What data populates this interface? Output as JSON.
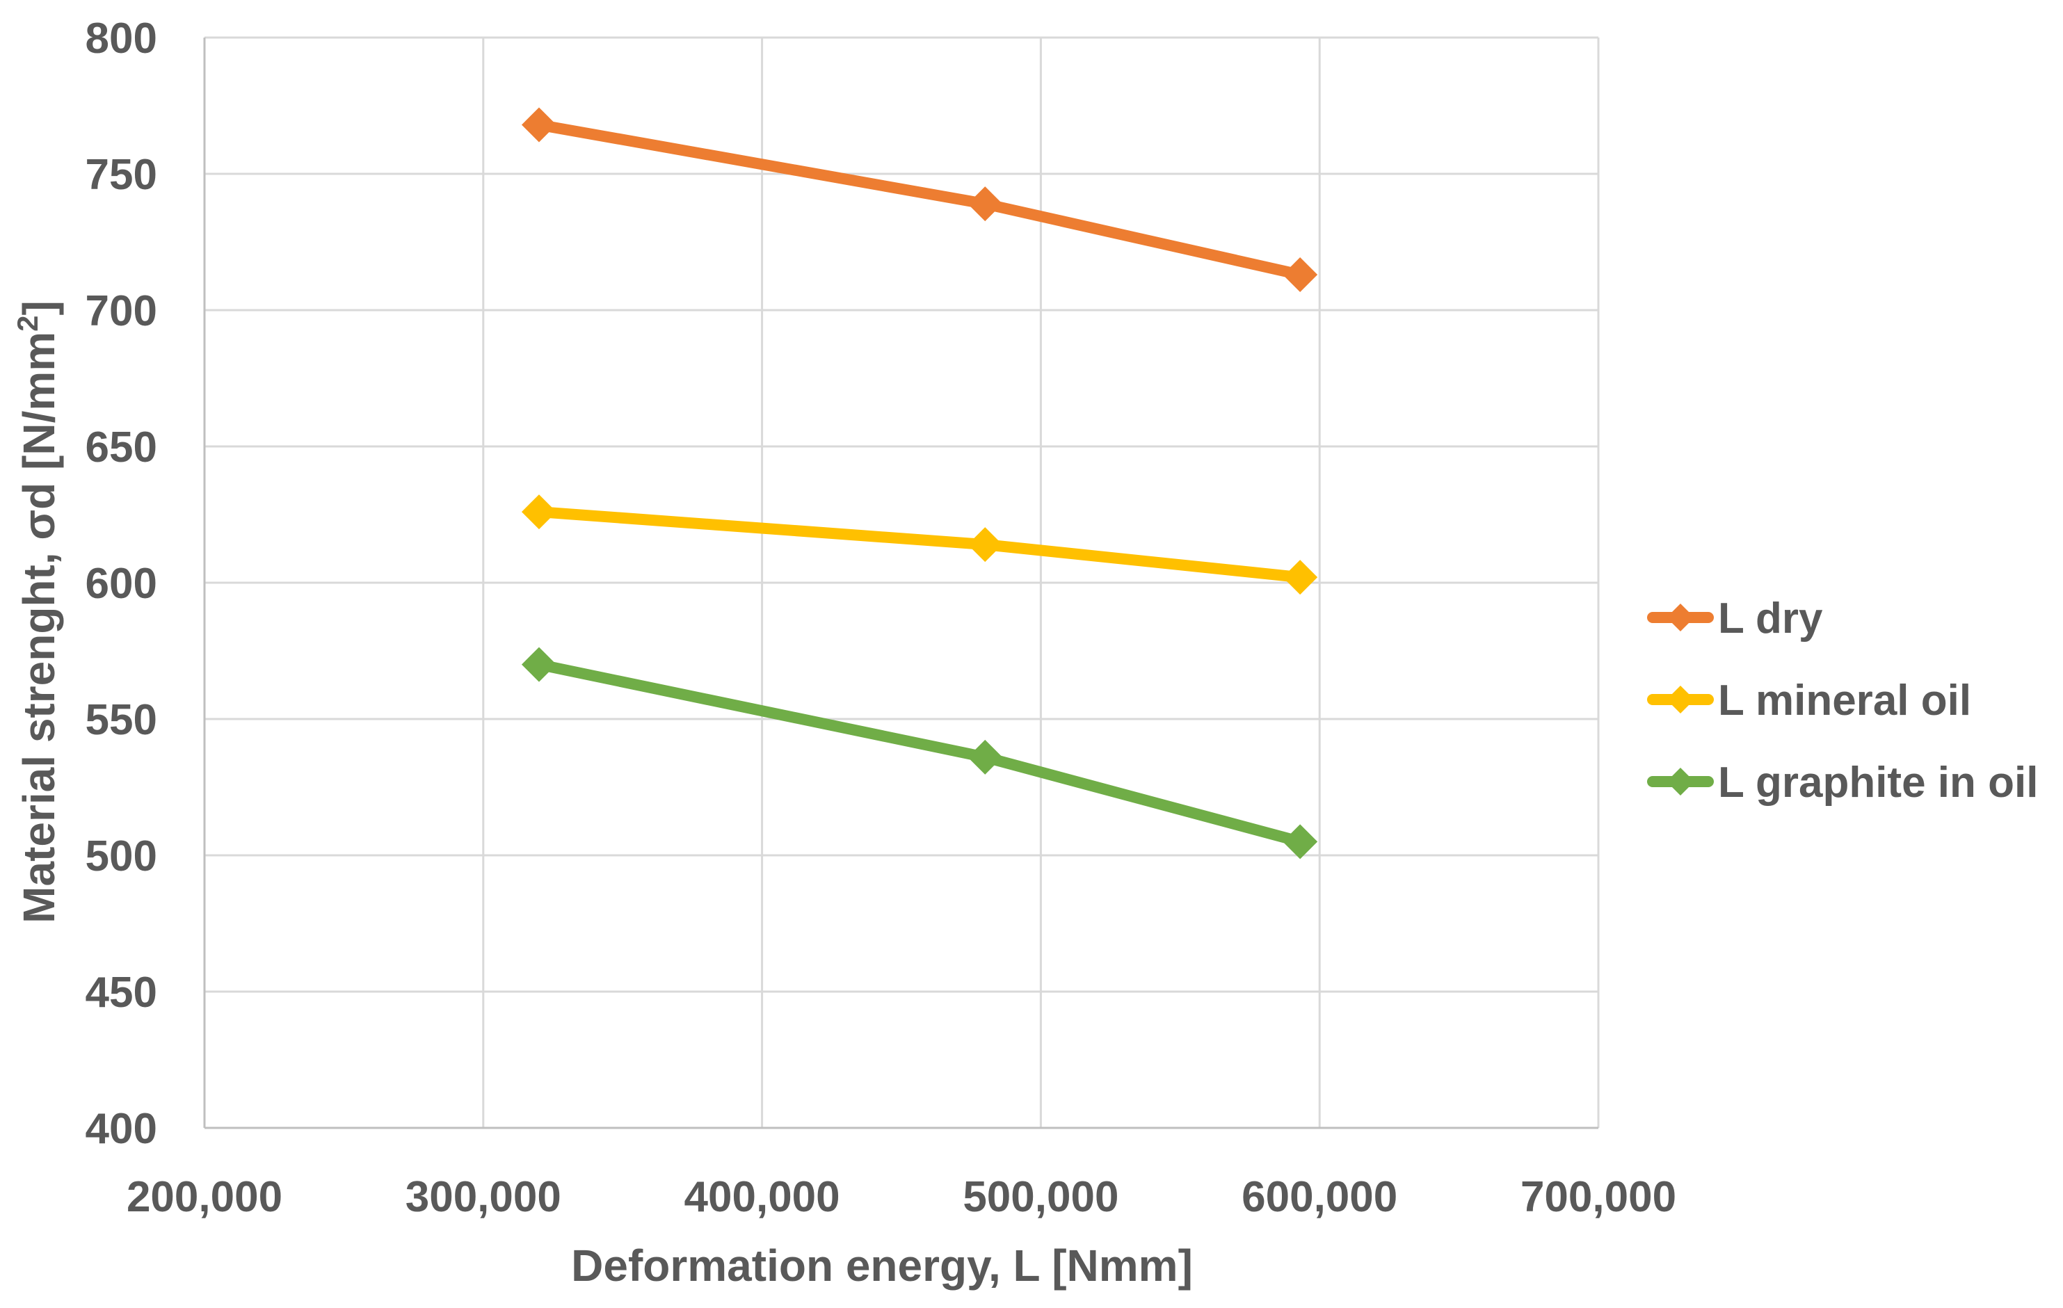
{
  "chart_data": {
    "type": "line",
    "title": "",
    "xlabel": "Deformation energy, L [Nmm]",
    "ylabel_main": "Material strenght, σd [N/mm",
    "ylabel_sup": "2",
    "ylabel_end": "]",
    "xlim": [
      200000,
      700000
    ],
    "ylim": [
      400,
      800
    ],
    "x_ticks": [
      200000,
      300000,
      400000,
      500000,
      600000,
      700000
    ],
    "x_tick_labels": [
      "200,000",
      "300,000",
      "400,000",
      "500,000",
      "600,000",
      "700,000"
    ],
    "y_ticks": [
      400,
      450,
      500,
      550,
      600,
      650,
      700,
      750,
      800
    ],
    "y_tick_labels": [
      "400",
      "450",
      "500",
      "550",
      "600",
      "650",
      "700",
      "750",
      "800"
    ],
    "grid": true,
    "legend_position": "right",
    "series": [
      {
        "name": "L dry",
        "color": "#ED7D31",
        "x": [
          320000,
          480000,
          593000
        ],
        "y": [
          768,
          739,
          713
        ]
      },
      {
        "name": "L mineral oil",
        "color": "#FFC000",
        "x": [
          320000,
          480000,
          593000
        ],
        "y": [
          626,
          614,
          602
        ]
      },
      {
        "name": "L graphite in oil",
        "color": "#70AD47",
        "x": [
          320000,
          480000,
          593000
        ],
        "y": [
          570,
          536,
          505
        ]
      }
    ]
  }
}
